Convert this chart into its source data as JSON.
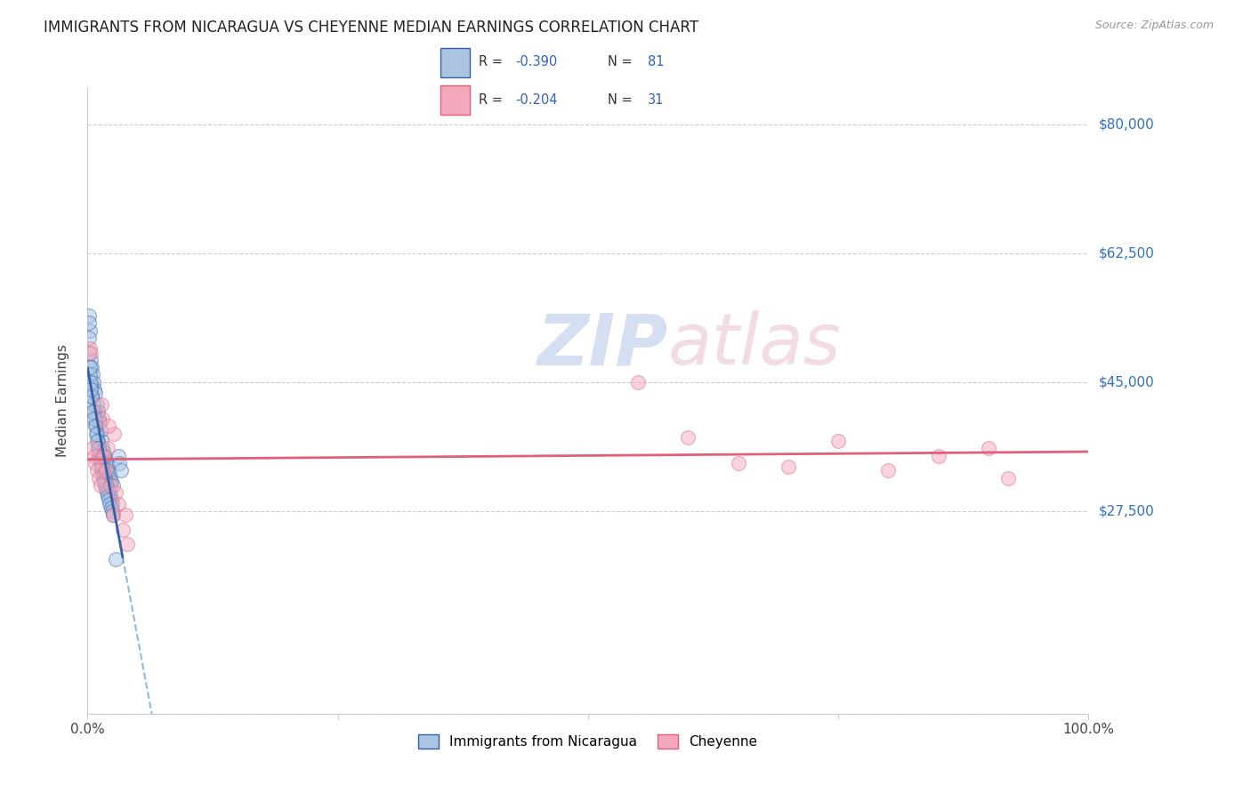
{
  "title": "IMMIGRANTS FROM NICARAGUA VS CHEYENNE MEDIAN EARNINGS CORRELATION CHART",
  "source": "Source: ZipAtlas.com",
  "ylabel": "Median Earnings",
  "xlim": [
    0.0,
    100.0
  ],
  "ylim": [
    0,
    85000
  ],
  "yticks": [
    0,
    27500,
    45000,
    62500,
    80000
  ],
  "ytick_labels": [
    "",
    "$27,500",
    "$45,000",
    "$62,500",
    "$80,000"
  ],
  "xtick_labels": [
    "0.0%",
    "100.0%"
  ],
  "series1_label": "Immigrants from Nicaragua",
  "series2_label": "Cheyenne",
  "series1_color": "#aac4e2",
  "series2_color": "#f4a8bc",
  "line1_color": "#3060a8",
  "line2_color": "#e0607a",
  "dash_color": "#90b8e0",
  "background_color": "#ffffff",
  "title_fontsize": 12,
  "axis_label_fontsize": 11,
  "tick_fontsize": 11,
  "marker_size": 130,
  "marker_alpha": 0.5,
  "blue_x": [
    0.15,
    0.25,
    0.18,
    0.3,
    0.4,
    0.5,
    0.6,
    0.7,
    0.8,
    0.9,
    1.0,
    1.1,
    1.2,
    1.3,
    1.4,
    1.5,
    1.6,
    1.7,
    1.8,
    1.9,
    2.0,
    2.1,
    2.2,
    2.3,
    2.4,
    2.5,
    0.12,
    0.2,
    0.35,
    0.45,
    0.55,
    0.65,
    0.75,
    0.85,
    0.95,
    1.05,
    1.15,
    1.25,
    1.35,
    1.45,
    1.55,
    1.65,
    1.75,
    1.85,
    1.95,
    2.05,
    2.15,
    2.25,
    2.35,
    2.45,
    0.1,
    0.22,
    0.32,
    0.42,
    0.52,
    0.62,
    0.72,
    0.82,
    0.92,
    1.02,
    1.12,
    1.22,
    1.32,
    1.42,
    1.52,
    1.62,
    1.72,
    1.82,
    1.92,
    2.02,
    2.12,
    2.22,
    2.32,
    2.42,
    2.52,
    3.1,
    3.2,
    3.3,
    0.28,
    1.38,
    2.8
  ],
  "blue_y": [
    54000,
    52000,
    51000,
    48000,
    47000,
    46000,
    45000,
    44000,
    43500,
    42000,
    41000,
    40000,
    39500,
    38500,
    37000,
    36000,
    35500,
    35000,
    34500,
    34000,
    33500,
    33000,
    32500,
    32000,
    31500,
    31000,
    53000,
    46000,
    44500,
    43000,
    42000,
    41000,
    40000,
    39000,
    38000,
    37000,
    36000,
    35500,
    35000,
    34000,
    33000,
    32500,
    32000,
    31500,
    31000,
    30500,
    30000,
    29500,
    29000,
    28500,
    49000,
    47000,
    45000,
    43000,
    41000,
    40000,
    39000,
    38000,
    37000,
    36000,
    35000,
    34500,
    34000,
    33000,
    32000,
    31500,
    31000,
    30500,
    30000,
    29500,
    29000,
    28500,
    28000,
    27500,
    27000,
    35000,
    34000,
    33000,
    44000,
    33500,
    21000
  ],
  "pink_x": [
    0.2,
    0.35,
    0.5,
    0.65,
    0.8,
    0.95,
    1.1,
    1.3,
    1.5,
    1.8,
    2.0,
    2.3,
    2.6,
    2.8,
    3.1,
    3.5,
    4.0,
    1.4,
    1.6,
    2.1,
    55.0,
    60.0,
    65.0,
    70.0,
    75.0,
    80.0,
    85.0,
    90.0,
    92.0,
    2.5,
    3.8
  ],
  "pink_y": [
    49500,
    49000,
    36000,
    35000,
    34000,
    33000,
    32000,
    31000,
    40000,
    33000,
    36000,
    31000,
    38000,
    30000,
    28500,
    25000,
    23000,
    42000,
    35000,
    39000,
    45000,
    37500,
    34000,
    33500,
    37000,
    33000,
    35000,
    36000,
    32000,
    27000,
    27000
  ]
}
